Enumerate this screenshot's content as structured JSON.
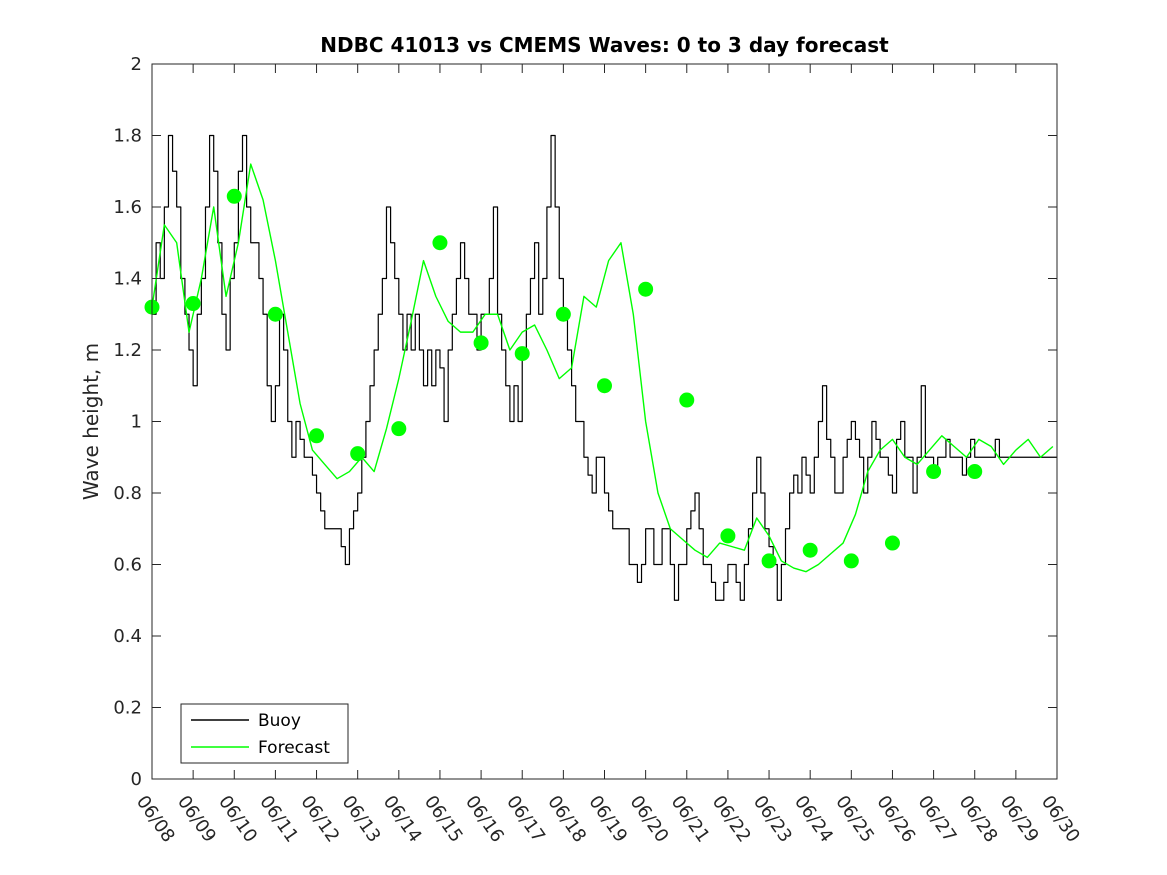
{
  "chart_data": {
    "type": "line",
    "title": "NDBC 41013 vs CMEMS Waves: 0 to 3 day forecast",
    "xlabel": "",
    "ylabel": "Wave height, m",
    "ylim": [
      0,
      2
    ],
    "yticks": [
      "0",
      "0.2",
      "0.4",
      "0.6",
      "0.8",
      "1",
      "1.2",
      "1.4",
      "1.6",
      "1.8",
      "2"
    ],
    "xticks": [
      "06/08",
      "06/09",
      "06/10",
      "06/11",
      "06/12",
      "06/13",
      "06/14",
      "06/15",
      "06/16",
      "06/17",
      "06/18",
      "06/19",
      "06/20",
      "06/21",
      "06/22",
      "06/23",
      "06/24",
      "06/25",
      "06/26",
      "06/27",
      "06/28",
      "06/29",
      "06/30"
    ],
    "xlim_days": [
      0,
      22
    ],
    "grid": false,
    "legend_position": "bottom-left",
    "colors": {
      "buoy": "#000000",
      "forecast": "#00ff00"
    },
    "series": [
      {
        "name": "Buoy",
        "x": [
          0,
          0.1,
          0.2,
          0.3,
          0.4,
          0.5,
          0.6,
          0.7,
          0.8,
          0.9,
          1,
          1.1,
          1.2,
          1.3,
          1.4,
          1.5,
          1.6,
          1.7,
          1.8,
          1.9,
          2,
          2.1,
          2.2,
          2.3,
          2.4,
          2.5,
          2.6,
          2.7,
          2.8,
          2.9,
          3,
          3.1,
          3.2,
          3.3,
          3.4,
          3.5,
          3.6,
          3.7,
          3.8,
          3.9,
          4,
          4.1,
          4.2,
          4.3,
          4.4,
          4.5,
          4.6,
          4.7,
          4.8,
          4.9,
          5,
          5.1,
          5.2,
          5.3,
          5.4,
          5.5,
          5.6,
          5.7,
          5.8,
          5.9,
          6,
          6.1,
          6.2,
          6.3,
          6.4,
          6.5,
          6.6,
          6.7,
          6.8,
          6.9,
          7,
          7.1,
          7.2,
          7.3,
          7.4,
          7.5,
          7.6,
          7.7,
          7.8,
          7.9,
          8,
          8.1,
          8.2,
          8.3,
          8.4,
          8.5,
          8.6,
          8.7,
          8.8,
          8.9,
          9,
          9.1,
          9.2,
          9.3,
          9.4,
          9.5,
          9.6,
          9.7,
          9.8,
          9.9,
          10,
          10.1,
          10.2,
          10.3,
          10.4,
          10.5,
          10.6,
          10.7,
          10.8,
          10.9,
          11,
          11.1,
          11.2,
          11.3,
          11.4,
          11.5,
          11.6,
          11.7,
          11.8,
          11.9,
          12,
          12.1,
          12.2,
          12.3,
          12.4,
          12.5,
          12.6,
          12.7,
          12.8,
          12.9,
          13,
          13.1,
          13.2,
          13.3,
          13.4,
          13.5,
          13.6,
          13.7,
          13.8,
          13.9,
          14,
          14.1,
          14.2,
          14.3,
          14.4,
          14.5,
          14.6,
          14.7,
          14.8,
          14.9,
          15,
          15.1,
          15.2,
          15.3,
          15.4,
          15.5,
          15.6,
          15.7,
          15.8,
          15.9,
          16,
          16.1,
          16.2,
          16.3,
          16.4,
          16.5,
          16.6,
          16.7,
          16.8,
          16.9,
          17,
          17.1,
          17.2,
          17.3,
          17.4,
          17.5,
          17.6,
          17.7,
          17.8,
          17.9,
          18,
          18.1,
          18.2,
          18.3,
          18.4,
          18.5,
          18.6,
          18.7,
          18.8,
          18.9,
          19,
          19.1,
          19.2,
          19.3,
          19.4,
          19.5,
          19.6,
          19.7,
          19.8,
          19.9,
          20,
          20.1,
          20.2,
          20.3,
          20.4,
          20.5,
          20.6,
          20.7,
          20.8,
          20.9,
          21,
          21.1,
          21.2,
          21.3,
          21.4,
          21.5,
          21.6,
          21.7,
          21.8,
          21.9,
          22
        ],
        "values": [
          1.3,
          1.5,
          1.4,
          1.6,
          1.8,
          1.7,
          1.6,
          1.4,
          1.3,
          1.2,
          1.1,
          1.3,
          1.4,
          1.6,
          1.8,
          1.7,
          1.5,
          1.3,
          1.2,
          1.4,
          1.5,
          1.7,
          1.8,
          1.6,
          1.5,
          1.5,
          1.4,
          1.3,
          1.1,
          1.0,
          1.1,
          1.3,
          1.2,
          1.0,
          0.9,
          1.0,
          0.95,
          0.9,
          0.9,
          0.85,
          0.8,
          0.75,
          0.7,
          0.7,
          0.7,
          0.7,
          0.65,
          0.6,
          0.7,
          0.75,
          0.8,
          0.9,
          1.0,
          1.1,
          1.2,
          1.3,
          1.4,
          1.6,
          1.5,
          1.4,
          1.3,
          1.2,
          1.3,
          1.2,
          1.3,
          1.2,
          1.1,
          1.2,
          1.1,
          1.2,
          1.15,
          1.0,
          1.2,
          1.3,
          1.4,
          1.5,
          1.4,
          1.3,
          1.3,
          1.2,
          1.3,
          1.3,
          1.4,
          1.6,
          1.3,
          1.2,
          1.1,
          1.0,
          1.1,
          1.0,
          1.2,
          1.3,
          1.4,
          1.5,
          1.3,
          1.4,
          1.6,
          1.8,
          1.6,
          1.4,
          1.3,
          1.2,
          1.1,
          1.0,
          1.0,
          0.9,
          0.85,
          0.8,
          0.9,
          0.9,
          0.8,
          0.75,
          0.7,
          0.7,
          0.7,
          0.7,
          0.6,
          0.6,
          0.55,
          0.6,
          0.7,
          0.7,
          0.6,
          0.6,
          0.7,
          0.7,
          0.6,
          0.5,
          0.6,
          0.6,
          0.7,
          0.75,
          0.8,
          0.7,
          0.6,
          0.6,
          0.55,
          0.5,
          0.5,
          0.55,
          0.6,
          0.6,
          0.55,
          0.5,
          0.6,
          0.7,
          0.8,
          0.9,
          0.8,
          0.7,
          0.65,
          0.6,
          0.5,
          0.6,
          0.7,
          0.8,
          0.85,
          0.8,
          0.9,
          0.85,
          0.8,
          0.9,
          1.0,
          1.1,
          0.95,
          0.9,
          0.8,
          0.8,
          0.9,
          0.95,
          1.0,
          0.95,
          0.9,
          0.8,
          0.9,
          1.0,
          0.95,
          0.9,
          0.9,
          0.85,
          0.8,
          0.95,
          1.0,
          0.9,
          0.9,
          0.8,
          0.9,
          1.1,
          0.9,
          0.9,
          0.85,
          0.9,
          0.9,
          0.95,
          0.9,
          0.9,
          0.9,
          0.85,
          0.9,
          0.95,
          0.9,
          0.9,
          0.9,
          0.9,
          0.9,
          0.95,
          0.9,
          0.9,
          0.9,
          0.9,
          0.9,
          0.9,
          0.9,
          0.9,
          0.9,
          0.9,
          0.9,
          0.9,
          0.9,
          0.9,
          0.9
        ]
      },
      {
        "name": "Forecast",
        "x": [
          0,
          0.3,
          0.6,
          0.9,
          1.2,
          1.5,
          1.8,
          2.1,
          2.4,
          2.7,
          3.0,
          3.3,
          3.6,
          3.9,
          4.2,
          4.5,
          4.8,
          5.1,
          5.4,
          5.7,
          6.0,
          6.3,
          6.6,
          6.9,
          7.2,
          7.5,
          7.8,
          8.1,
          8.4,
          8.7,
          9.0,
          9.3,
          9.6,
          9.9,
          10.2,
          10.5,
          10.8,
          11.1,
          11.4,
          11.7,
          12.0,
          12.3,
          12.6,
          12.9,
          13.2,
          13.5,
          13.8,
          14.1,
          14.4,
          14.7,
          15.0,
          15.3,
          15.6,
          15.9,
          16.2,
          16.5,
          16.8,
          17.1,
          17.4,
          17.7,
          18.0,
          18.3,
          18.6,
          18.9,
          19.2,
          19.5,
          19.8,
          20.1,
          20.4,
          20.7,
          21.0,
          21.3,
          21.6,
          21.9
        ],
        "values": [
          1.32,
          1.55,
          1.5,
          1.25,
          1.4,
          1.6,
          1.35,
          1.5,
          1.72,
          1.62,
          1.45,
          1.25,
          1.05,
          0.92,
          0.88,
          0.84,
          0.86,
          0.9,
          0.86,
          0.98,
          1.12,
          1.28,
          1.45,
          1.35,
          1.28,
          1.25,
          1.25,
          1.3,
          1.3,
          1.2,
          1.25,
          1.27,
          1.2,
          1.12,
          1.15,
          1.35,
          1.32,
          1.45,
          1.5,
          1.3,
          1.0,
          0.8,
          0.7,
          0.67,
          0.64,
          0.62,
          0.66,
          0.65,
          0.64,
          0.73,
          0.68,
          0.61,
          0.59,
          0.58,
          0.6,
          0.63,
          0.66,
          0.74,
          0.86,
          0.92,
          0.95,
          0.9,
          0.88,
          0.92,
          0.96,
          0.93,
          0.9,
          0.95,
          0.93,
          0.88,
          0.92,
          0.95,
          0.9,
          0.93
        ]
      }
    ],
    "markers": {
      "x": [
        0,
        1,
        2,
        3,
        4,
        5,
        6,
        7,
        8,
        9,
        10,
        11,
        12,
        13,
        14,
        15,
        16,
        17,
        18,
        19,
        20
      ],
      "values": [
        1.32,
        1.33,
        1.63,
        1.3,
        0.96,
        0.91,
        0.98,
        1.5,
        1.22,
        1.19,
        1.3,
        1.1,
        1.37,
        1.06,
        0.68,
        0.61,
        0.64,
        0.61,
        0.66,
        0.86,
        0.86
      ]
    },
    "legend": [
      "Buoy",
      "Forecast"
    ]
  }
}
